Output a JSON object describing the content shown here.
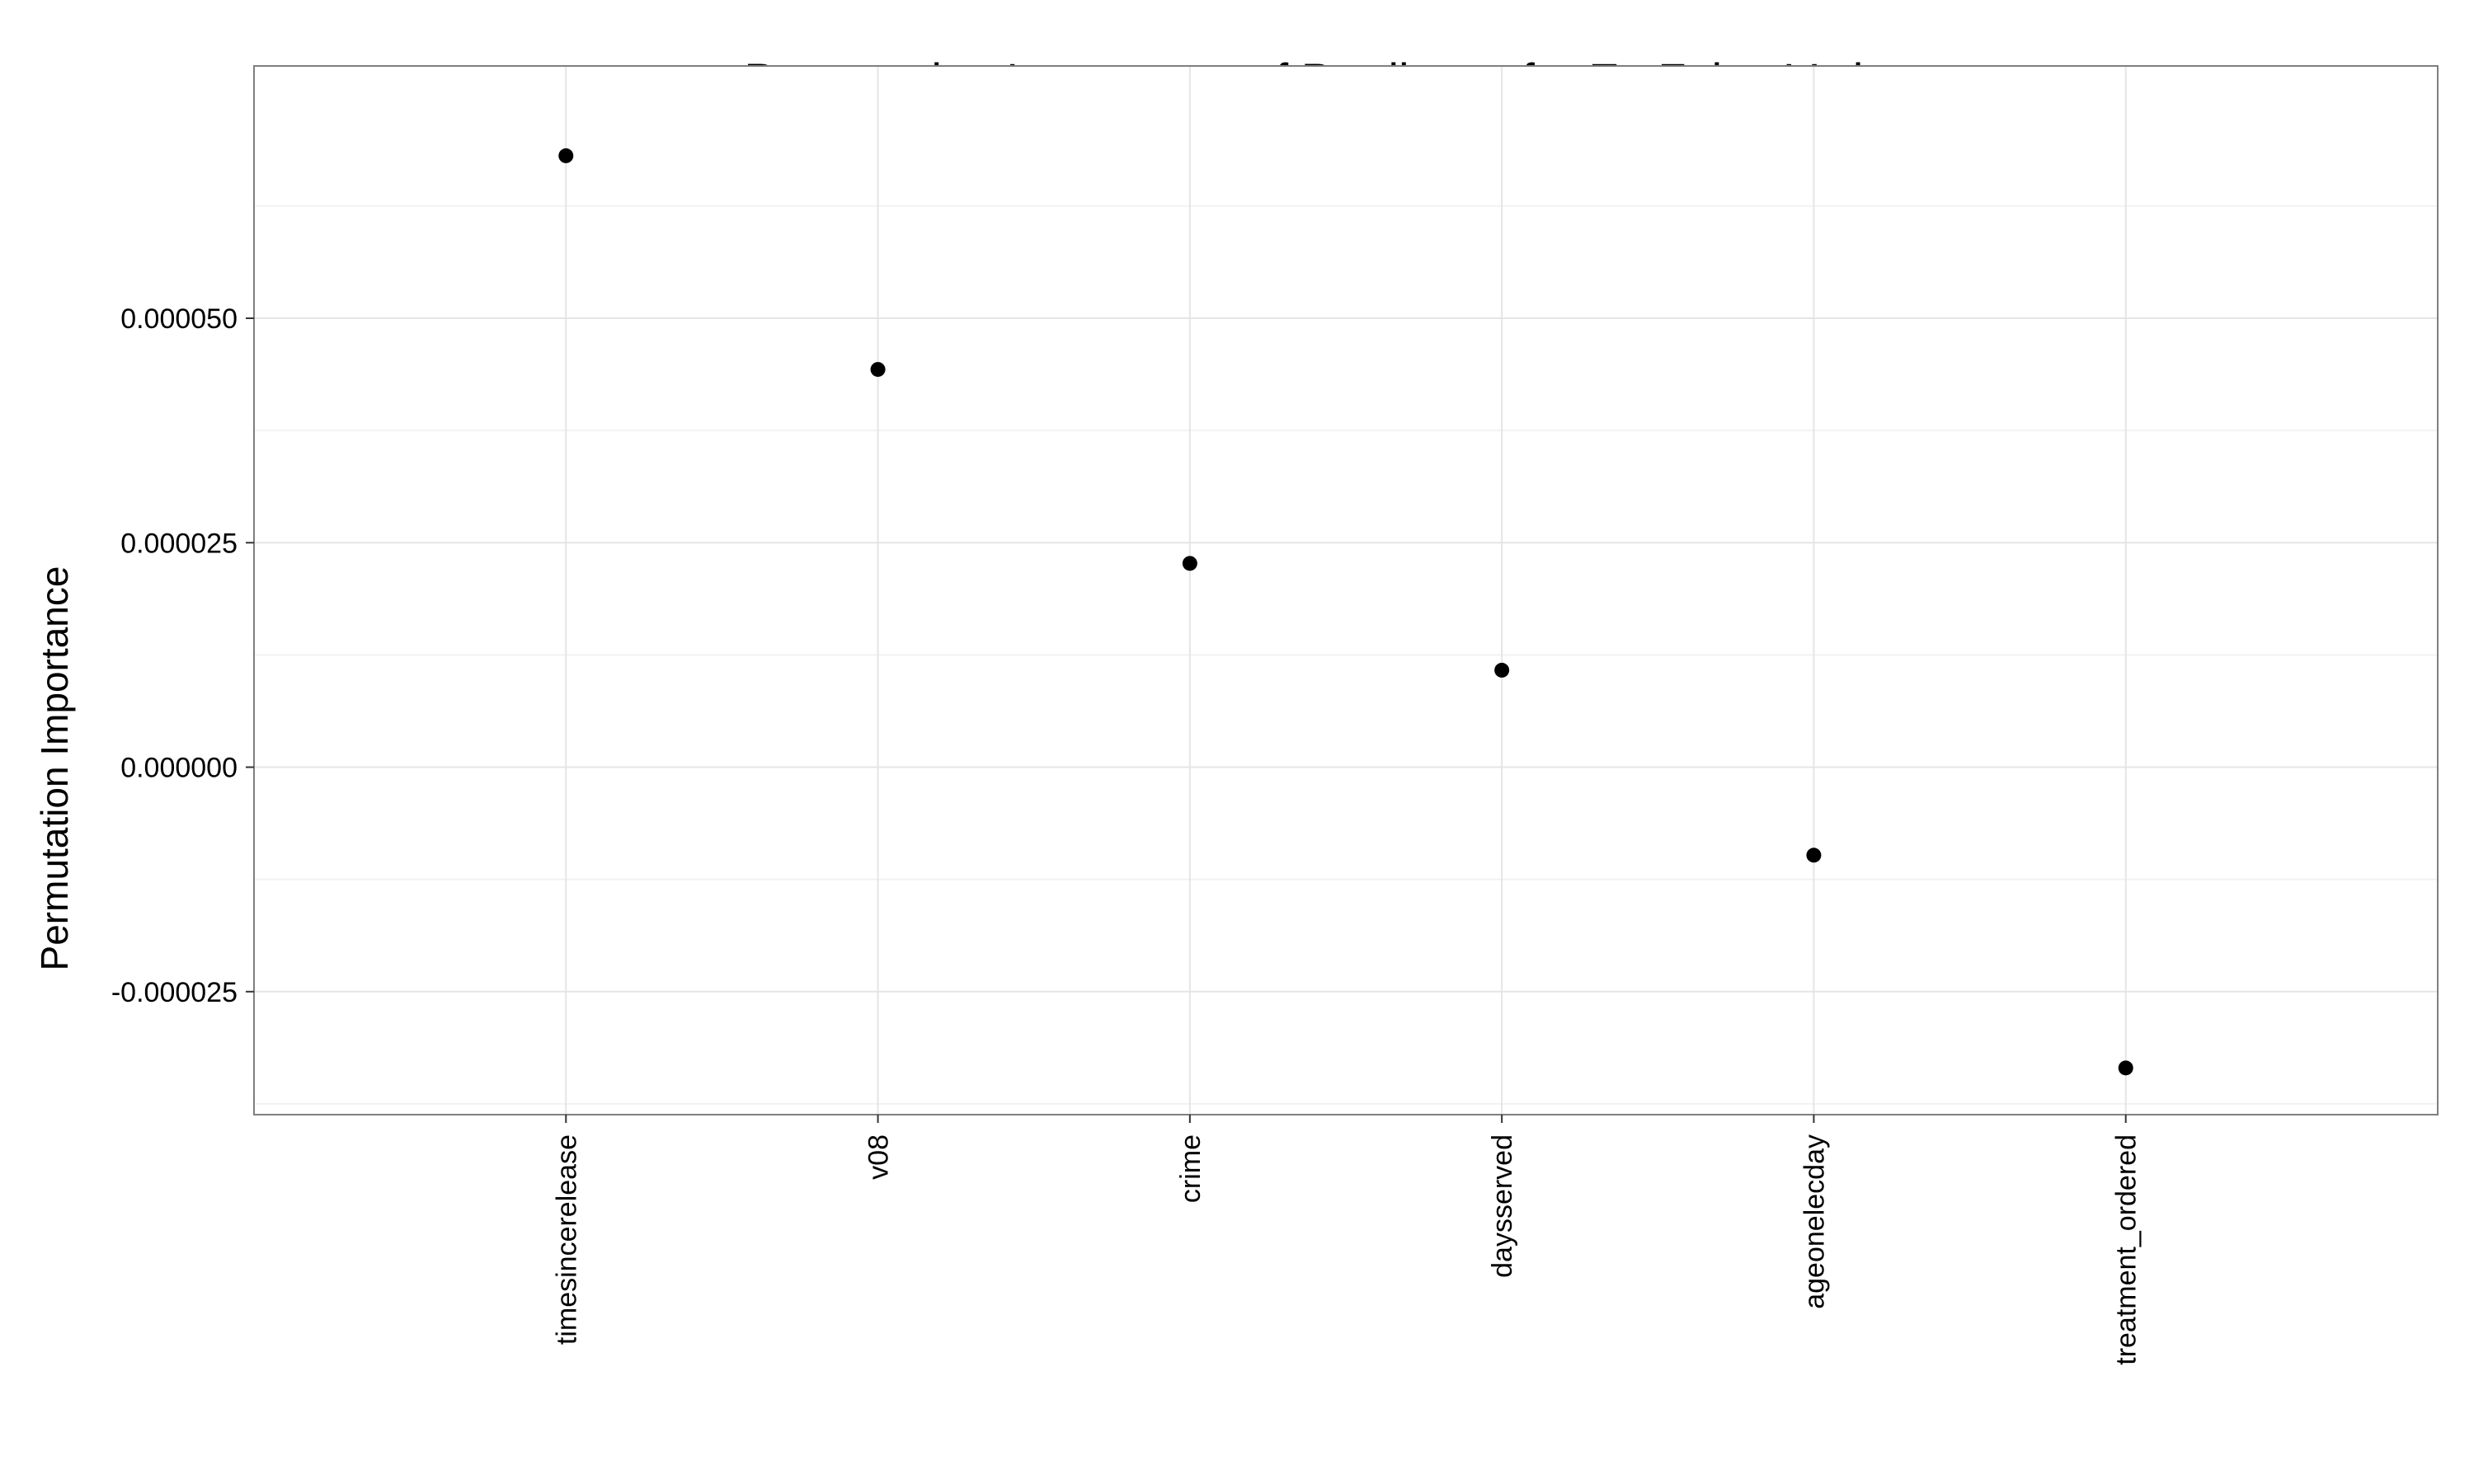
{
  "chart_data": {
    "type": "scatter",
    "title": "Permutation Importance of Predictors for Ex-Felon Voting",
    "xlabel": "",
    "ylabel": "Permutation Importance",
    "categories": [
      "timesincerelease",
      "v08",
      "crime",
      "daysserved",
      "ageonelecday",
      "treatment_ordered"
    ],
    "values": [
      6.81e-05,
      4.43e-05,
      2.27e-05,
      1.08e-05,
      -9.8e-06,
      -3.35e-05
    ],
    "ylim": [
      -3.87e-05,
      7.81e-05
    ],
    "yticks": [
      -2.5e-05,
      0.0,
      2.5e-05,
      5e-05
    ],
    "ytick_labels": [
      "-0.000025",
      "0.000000",
      "0.000025",
      "0.000050"
    ],
    "grid": true,
    "legend": "none",
    "colors": {
      "point": "#000000",
      "grid_major": "#e5e5e5",
      "grid_minor": "#f2f2f2",
      "frame": "#7f7f7f",
      "background": "#ffffff"
    }
  }
}
